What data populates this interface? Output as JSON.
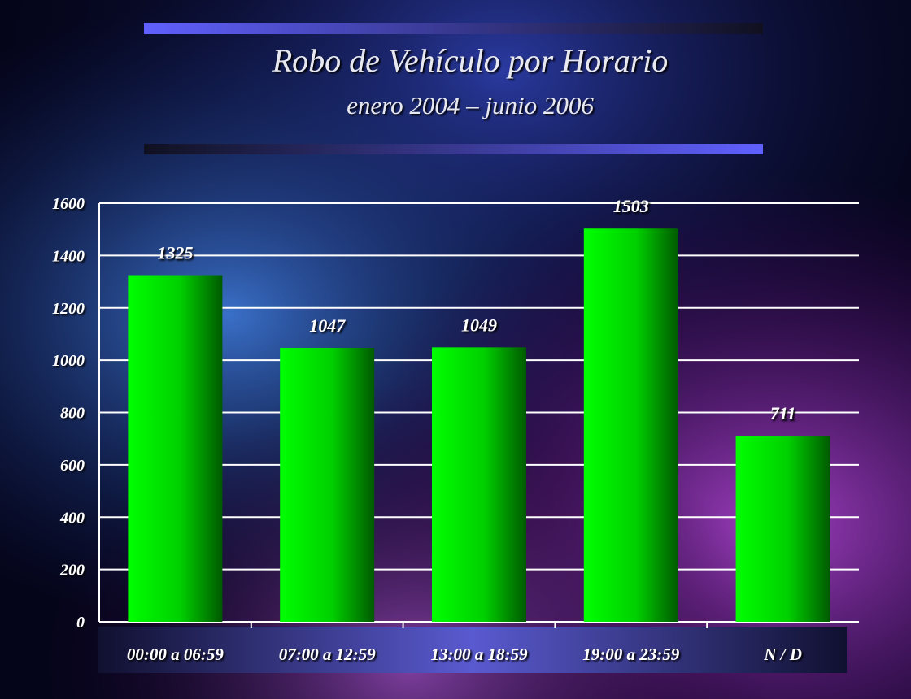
{
  "chart_data": {
    "type": "bar",
    "title": "Robo de Vehículo por Horario",
    "subtitle": "enero 2004 – junio 2006",
    "categories": [
      "00:00 a 06:59",
      "07:00 a 12:59",
      "13:00 a 18:59",
      "19:00 a 23:59",
      "N / D"
    ],
    "values": [
      1325,
      1047,
      1049,
      1503,
      711
    ],
    "color": "#00ff00",
    "ylim": [
      0,
      1600
    ],
    "yticks": [
      0,
      200,
      400,
      600,
      800,
      1000,
      1200,
      1400,
      1600
    ],
    "grid": true
  }
}
